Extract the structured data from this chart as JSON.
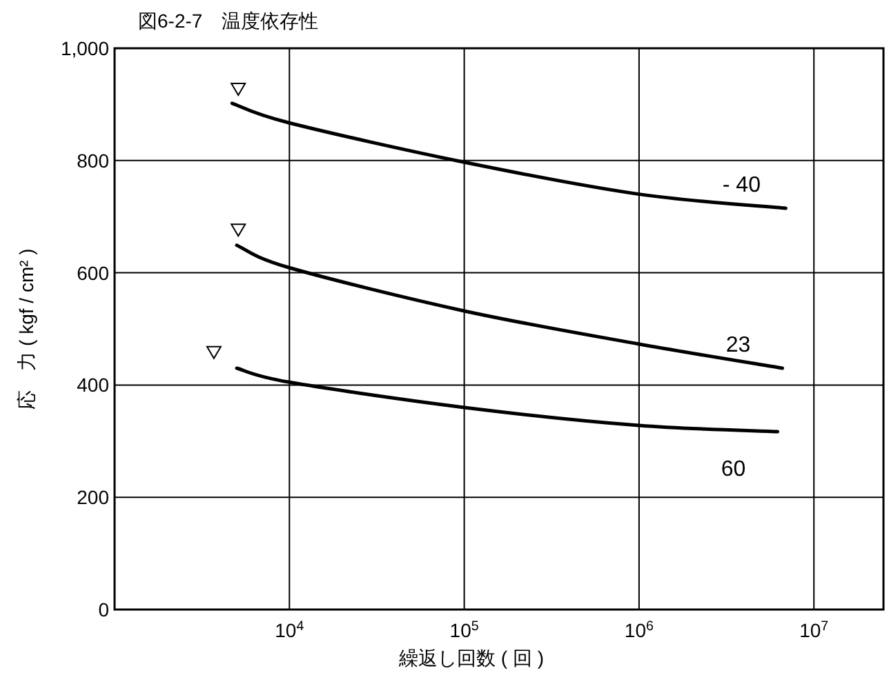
{
  "chart_data": {
    "type": "line",
    "title": "図6-2-7　温度依存性",
    "xlabel": "繰返し回数 ( 回 )",
    "ylabel": "応　力 ( kgf / cm² )",
    "log": "x",
    "grid": true,
    "line_style": "solid",
    "xlim": [
      1000,
      25000000
    ],
    "xticks": [
      {
        "value": 10000,
        "label": "10$^{4}$"
      },
      {
        "value": 100000,
        "label": "10$^{5}$"
      },
      {
        "value": 1000000,
        "label": "10$^{6}$"
      },
      {
        "value": 10000000,
        "label": "10$^{7}$"
      }
    ],
    "ylim": [
      0,
      1000
    ],
    "yticks": [
      0,
      200,
      400,
      600,
      800,
      {
        "value": 1000,
        "label": "1,000"
      }
    ],
    "series": [
      {
        "name": "- 40",
        "color": "#000000",
        "x": [
          4700,
          10000,
          100000,
          1000000,
          6900000
        ],
        "values": [
          902,
          867,
          797,
          740,
          715
        ]
      },
      {
        "name": "23",
        "color": "#000000",
        "x": [
          5000,
          10000,
          100000,
          1000000,
          6600000
        ],
        "values": [
          649,
          609,
          532,
          473,
          430
        ]
      },
      {
        "name": "60",
        "color": "#000000",
        "x": [
          5000,
          10000,
          100000,
          1000000,
          6200000
        ],
        "values": [
          430,
          405,
          360,
          328,
          317
        ]
      },
      {
        "type": "scatter",
        "color": "#000000",
        "marker": "triangle",
        "x": [
          5100,
          5100,
          3700
        ],
        "values": [
          927,
          676,
          458
        ]
      }
    ]
  }
}
